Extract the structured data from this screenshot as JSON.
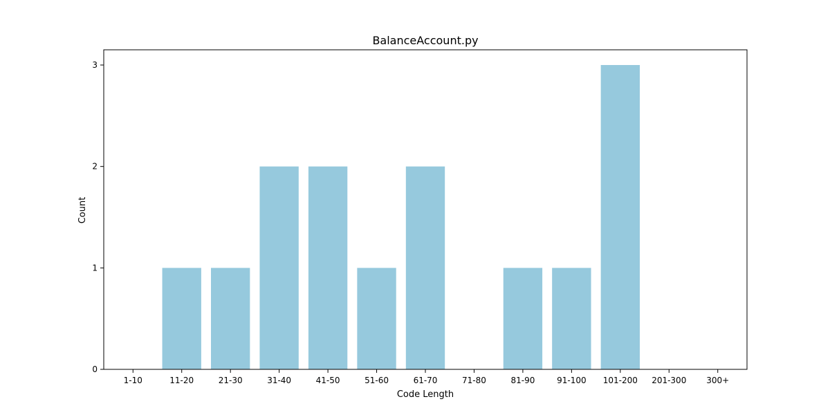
{
  "chart_data": {
    "type": "bar",
    "title": "BalanceAccount.py",
    "xlabel": "Code Length",
    "ylabel": "Count",
    "categories": [
      "1-10",
      "11-20",
      "21-30",
      "31-40",
      "41-50",
      "51-60",
      "61-70",
      "71-80",
      "81-90",
      "91-100",
      "101-200",
      "201-300",
      "300+"
    ],
    "values": [
      0,
      1,
      1,
      2,
      2,
      1,
      2,
      0,
      1,
      1,
      3,
      0,
      0
    ],
    "ylim": [
      0,
      3.15
    ],
    "yticks": [
      "0",
      "1",
      "2",
      "3"
    ],
    "grid": false,
    "legend": "none",
    "colors": {
      "bar": "#96c9dd",
      "axis": "#000000",
      "text": "#000000"
    }
  }
}
